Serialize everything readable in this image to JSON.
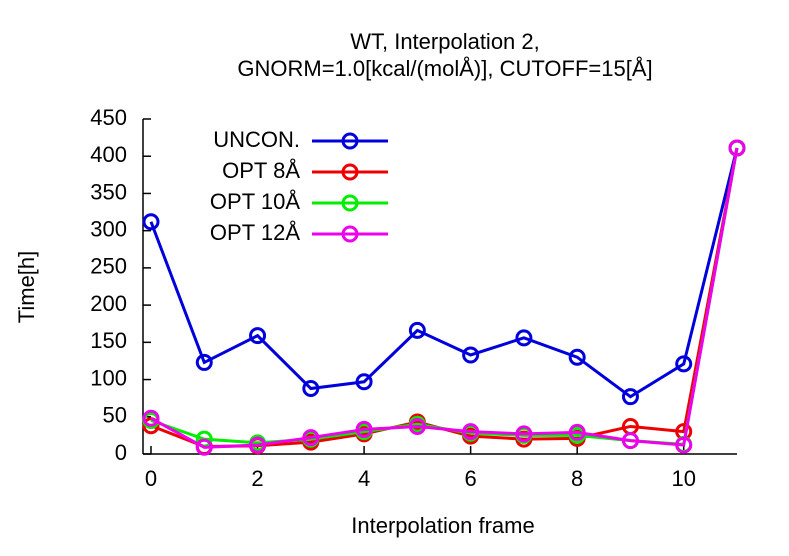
{
  "chart_data": {
    "type": "line",
    "title": [
      "WT, Interpolation 2,",
      "GNORM=1.0[kcal/(molÅ)], CUTOFF=15[Å]"
    ],
    "x_label": "Interpolation frame",
    "y_label": "Time[h]",
    "x": [
      0,
      1,
      2,
      3,
      4,
      5,
      6,
      7,
      8,
      9,
      10,
      11
    ],
    "series": [
      {
        "name": "UNCON.",
        "color": "#0000dd",
        "values": [
          312,
          123,
          159,
          88,
          97,
          166,
          133,
          156,
          130,
          77,
          121,
          411
        ]
      },
      {
        "name": "OPT 8Å",
        "color": "#ee0000",
        "values": [
          38,
          10,
          11,
          16,
          27,
          43,
          24,
          20,
          21,
          37,
          30,
          411
        ]
      },
      {
        "name": "OPT 10Å",
        "color": "#00ee00",
        "values": [
          45,
          20,
          15,
          20,
          30,
          40,
          28,
          25,
          25,
          18,
          13,
          411
        ]
      },
      {
        "name": "OPT 12Å",
        "color": "#ee00ee",
        "values": [
          48,
          9,
          12,
          22,
          33,
          37,
          30,
          27,
          29,
          18,
          12,
          411
        ]
      }
    ],
    "xlim": [
      -0.15,
      11
    ],
    "xticks": [
      0,
      2,
      4,
      6,
      8,
      10
    ],
    "ylim": [
      0,
      450
    ],
    "yticks": [
      0,
      50,
      100,
      150,
      200,
      250,
      300,
      350,
      400,
      450
    ],
    "legend": "upper-left",
    "grid": false
  }
}
